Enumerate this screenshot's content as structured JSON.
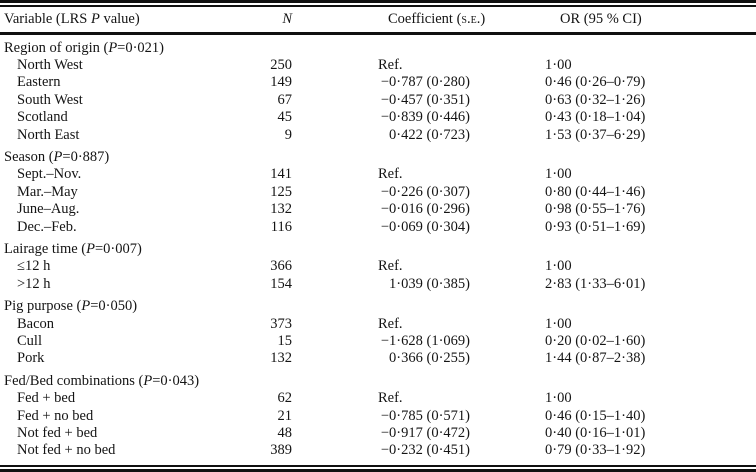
{
  "table": {
    "header": {
      "variable": {
        "pre": "Variable (LRS ",
        "italic": "P",
        "post": " value)"
      },
      "n": "N",
      "coefficient": {
        "pre": "Coefficient (",
        "smallcaps": "s.e.",
        "post": ")"
      },
      "or": "OR (95 % CI)"
    },
    "sections": [
      {
        "title": {
          "pre": "Region of origin (",
          "italic": "P",
          "post": "=0·021)"
        },
        "rows": [
          {
            "variable": "North West",
            "n": "250",
            "coefficient": "Ref.",
            "is_ref": true,
            "or": "1·00"
          },
          {
            "variable": "Eastern",
            "n": "149",
            "coefficient": "−0·787 (0·280)",
            "is_ref": false,
            "or": "0·46 (0·26–0·79)"
          },
          {
            "variable": "South West",
            "n": "67",
            "coefficient": "−0·457 (0·351)",
            "is_ref": false,
            "or": "0·63 (0·32–1·26)"
          },
          {
            "variable": "Scotland",
            "n": "45",
            "coefficient": "−0·839 (0·446)",
            "is_ref": false,
            "or": "0·43 (0·18–1·04)"
          },
          {
            "variable": "North East",
            "n": "9",
            "coefficient": "0·422 (0·723)",
            "is_ref": false,
            "or": "1·53 (0·37–6·29)"
          }
        ]
      },
      {
        "title": {
          "pre": "Season (",
          "italic": "P",
          "post": "=0·887)"
        },
        "rows": [
          {
            "variable": "Sept.–Nov.",
            "n": "141",
            "coefficient": "Ref.",
            "is_ref": true,
            "or": "1·00"
          },
          {
            "variable": "Mar.–May",
            "n": "125",
            "coefficient": "−0·226 (0·307)",
            "is_ref": false,
            "or": "0·80 (0·44–1·46)"
          },
          {
            "variable": "June–Aug.",
            "n": "132",
            "coefficient": "−0·016 (0·296)",
            "is_ref": false,
            "or": "0·98 (0·55–1·76)"
          },
          {
            "variable": "Dec.–Feb.",
            "n": "116",
            "coefficient": "−0·069 (0·304)",
            "is_ref": false,
            "or": "0·93 (0·51–1·69)"
          }
        ]
      },
      {
        "title": {
          "pre": "Lairage time (",
          "italic": "P",
          "post": "=0·007)"
        },
        "rows": [
          {
            "variable": "≤12 h",
            "n": "366",
            "coefficient": "Ref.",
            "is_ref": true,
            "or": "1·00"
          },
          {
            "variable": ">12 h",
            "n": "154",
            "coefficient": "1·039 (0·385)",
            "is_ref": false,
            "or": "2·83 (1·33–6·01)"
          }
        ]
      },
      {
        "title": {
          "pre": "Pig purpose (",
          "italic": "P",
          "post": "=0·050)"
        },
        "rows": [
          {
            "variable": "Bacon",
            "n": "373",
            "coefficient": "Ref.",
            "is_ref": true,
            "or": "1·00"
          },
          {
            "variable": "Cull",
            "n": "15",
            "coefficient": "−1·628 (1·069)",
            "is_ref": false,
            "or": "0·20 (0·02–1·60)"
          },
          {
            "variable": "Pork",
            "n": "132",
            "coefficient": "0·366 (0·255)",
            "is_ref": false,
            "or": "1·44 (0·87–2·38)"
          }
        ]
      },
      {
        "title": {
          "pre": "Fed/Bed combinations (",
          "italic": "P",
          "post": "=0·043)"
        },
        "rows": [
          {
            "variable": "Fed + bed",
            "n": "62",
            "coefficient": "Ref.",
            "is_ref": true,
            "or": "1·00"
          },
          {
            "variable": "Fed + no bed",
            "n": "21",
            "coefficient": "−0·785 (0·571)",
            "is_ref": false,
            "or": "0·46 (0·15–1·40)"
          },
          {
            "variable": "Not fed + bed",
            "n": "48",
            "coefficient": "−0·917 (0·472)",
            "is_ref": false,
            "or": "0·40 (0·16–1·01)"
          },
          {
            "variable": "Not fed + no bed",
            "n": "389",
            "coefficient": "−0·232 (0·451)",
            "is_ref": false,
            "or": "0·79 (0·33–1·92)"
          }
        ]
      }
    ]
  }
}
